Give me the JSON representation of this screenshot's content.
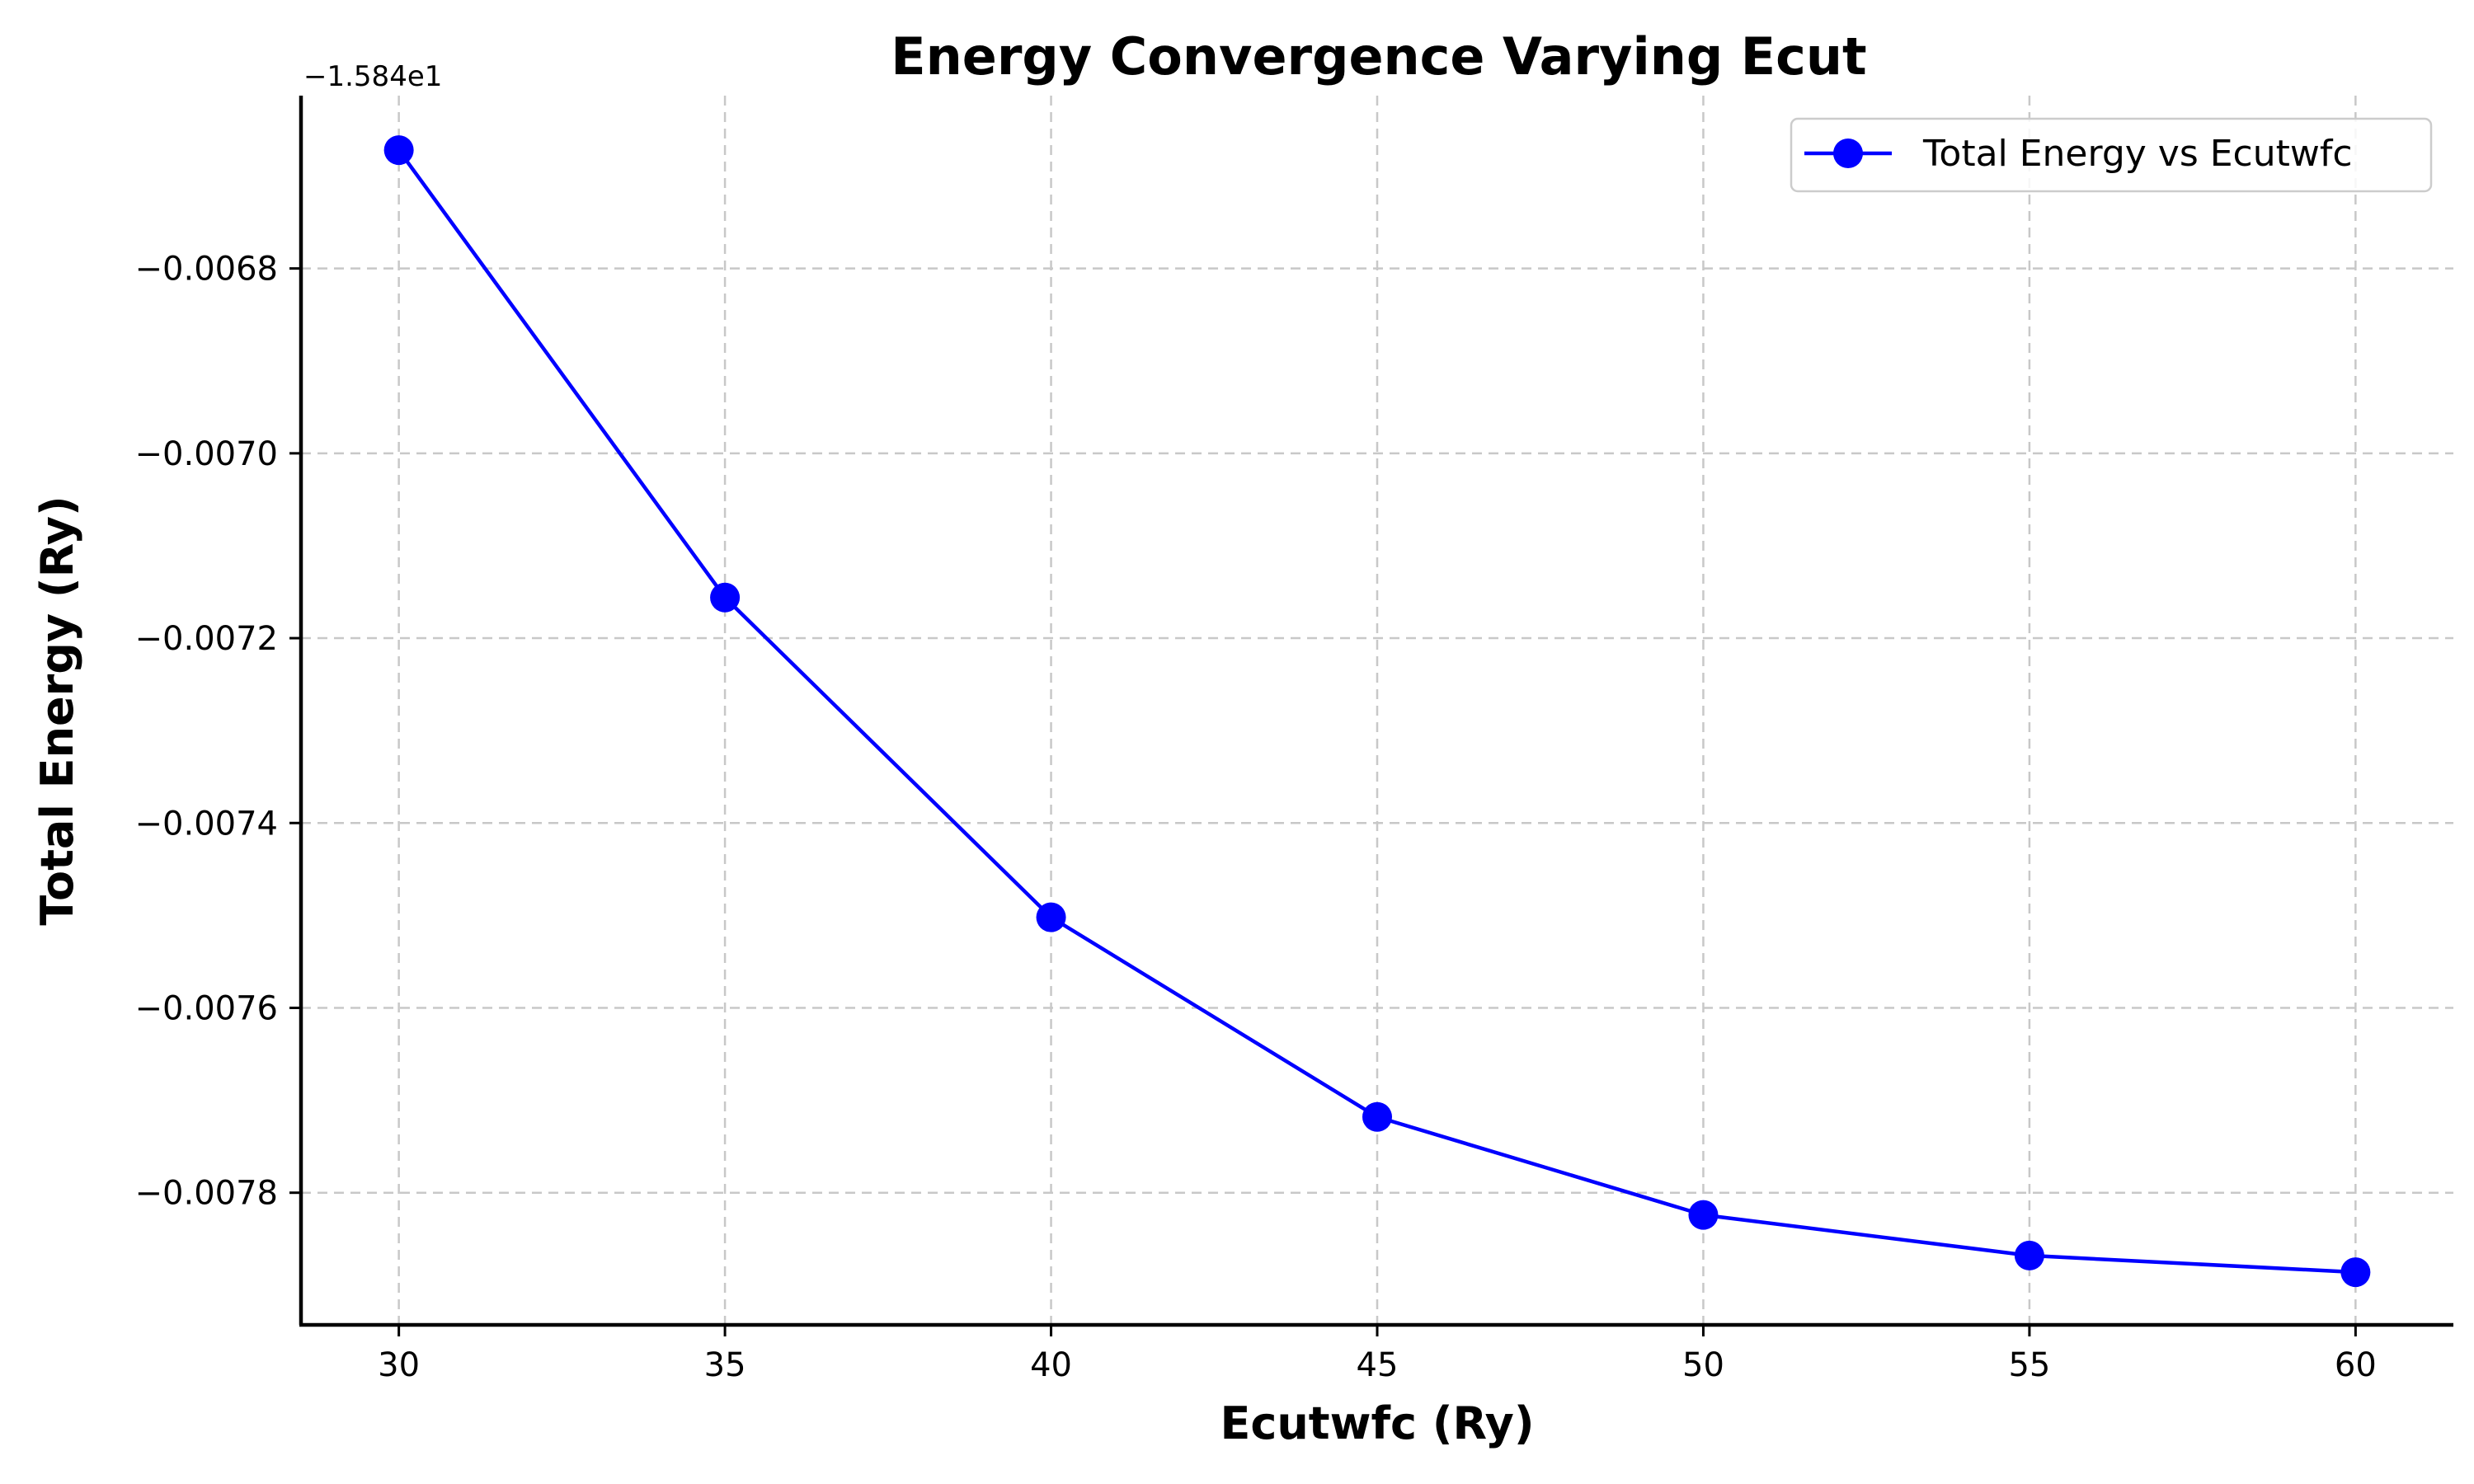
{
  "chart_data": {
    "type": "line",
    "title": "Energy Convergence Varying Ecut",
    "xlabel": "Ecutwfc (Ry)",
    "ylabel": "Total Energy (Ry)",
    "y_offset_label": "−1.584e1",
    "x": [
      30,
      35,
      40,
      45,
      50,
      55,
      60
    ],
    "series": [
      {
        "name": "Total Energy vs Ecutwfc",
        "color": "#0000ff",
        "marker": "circle",
        "values": [
          -0.006672,
          -0.007156,
          -0.007502,
          -0.007718,
          -0.007824,
          -0.007868,
          -0.007886
        ]
      }
    ],
    "xlim": [
      28.5,
      61.5
    ],
    "ylim": [
      -0.007943,
      -0.006613
    ],
    "xticks": [
      30,
      35,
      40,
      45,
      50,
      55,
      60
    ],
    "xtick_labels": [
      "30",
      "35",
      "40",
      "45",
      "50",
      "55",
      "60"
    ],
    "yticks": [
      -0.0068,
      -0.007,
      -0.0072,
      -0.0074,
      -0.0076,
      -0.0078
    ],
    "ytick_labels": [
      "−0.0068",
      "−0.0070",
      "−0.0072",
      "−0.0074",
      "−0.0076",
      "−0.0078"
    ],
    "grid": true,
    "legend_position": "top-right"
  }
}
